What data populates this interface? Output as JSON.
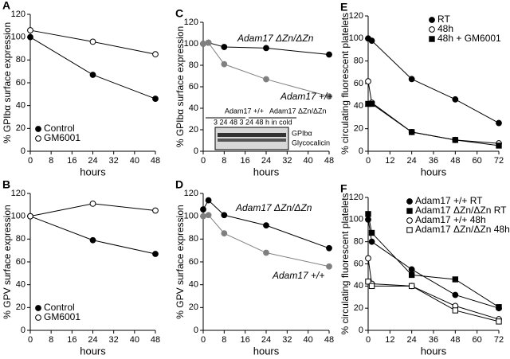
{
  "chart_data": [
    {
      "type": "line",
      "label": "A",
      "ylabel": "% GPIbα surface expression",
      "xlabel": "hours",
      "xlim": [
        0,
        48
      ],
      "xticks": [
        0,
        8,
        16,
        24,
        32,
        40,
        48
      ],
      "ylim": [
        0,
        120
      ],
      "yticks": [
        0,
        20,
        40,
        60,
        80,
        100,
        120
      ],
      "legend": "lower-left",
      "series": [
        {
          "name": "Control",
          "color": "#000000",
          "marker": "circle",
          "filled": true,
          "x": [
            0,
            24,
            48
          ],
          "values": [
            100,
            67,
            46
          ]
        },
        {
          "name": "GM6001",
          "color": "#000000",
          "marker": "circle",
          "filled": false,
          "x": [
            0,
            24,
            48
          ],
          "values": [
            106,
            96,
            85
          ]
        }
      ]
    },
    {
      "type": "line",
      "label": "B",
      "ylabel": "% GPV surface expression",
      "xlabel": "hours",
      "xlim": [
        0,
        48
      ],
      "xticks": [
        0,
        8,
        16,
        24,
        32,
        40,
        48
      ],
      "ylim": [
        0,
        120
      ],
      "yticks": [
        0,
        20,
        40,
        60,
        80,
        100,
        120
      ],
      "legend": "lower-left",
      "series": [
        {
          "name": "Control",
          "color": "#000000",
          "marker": "circle",
          "filled": true,
          "x": [
            0,
            24,
            48
          ],
          "values": [
            100,
            79,
            67
          ]
        },
        {
          "name": "GM6001",
          "color": "#000000",
          "marker": "circle",
          "filled": false,
          "x": [
            0,
            24,
            48
          ],
          "values": [
            100,
            111,
            105
          ]
        }
      ]
    },
    {
      "type": "line",
      "label": "C",
      "ylabel": "% GPIbα surface expression",
      "xlabel": "hours",
      "xlim": [
        0,
        48
      ],
      "xticks": [
        0,
        8,
        16,
        24,
        32,
        40,
        48
      ],
      "ylim": [
        0,
        120
      ],
      "yticks": [
        0,
        20,
        40,
        60,
        80,
        100,
        120
      ],
      "legend": "inline",
      "series": [
        {
          "name": "Adam17 ΔZn/ΔZn",
          "color": "#000000",
          "marker": "circle",
          "filled": true,
          "x": [
            0,
            2,
            8,
            24,
            48
          ],
          "values": [
            100,
            101,
            97,
            96,
            90
          ]
        },
        {
          "name": "Adam17 +/+",
          "color": "#808080",
          "marker": "circle",
          "filled": true,
          "x": [
            0,
            2,
            8,
            24,
            48
          ],
          "values": [
            100,
            101,
            81,
            67,
            51
          ]
        }
      ],
      "annotations": [
        "Adam17 +/+",
        "Adam17 ΔZn/ΔZn",
        "3 24 48 3 24 48 h in cold",
        "GPIbα",
        "Glycocalicin"
      ]
    },
    {
      "type": "line",
      "label": "D",
      "ylabel": "% GPV surface expression",
      "xlabel": "hours",
      "xlim": [
        0,
        48
      ],
      "xticks": [
        0,
        8,
        16,
        24,
        32,
        40,
        48
      ],
      "ylim": [
        0,
        120
      ],
      "yticks": [
        0,
        20,
        40,
        60,
        80,
        100,
        120
      ],
      "legend": "inline",
      "series": [
        {
          "name": "Adam17 ΔZn/ΔZn",
          "color": "#000000",
          "marker": "circle",
          "filled": true,
          "x": [
            0,
            2,
            8,
            24,
            48
          ],
          "values": [
            106,
            114,
            101,
            92,
            72
          ]
        },
        {
          "name": "Adam17 +/+",
          "color": "#808080",
          "marker": "circle",
          "filled": true,
          "x": [
            0,
            2,
            8,
            24,
            48
          ],
          "values": [
            100,
            101,
            85,
            68,
            56
          ]
        }
      ]
    },
    {
      "type": "line",
      "label": "E",
      "ylabel": "% circulating fluorescent platelets",
      "xlabel": "hours",
      "xlim": [
        0,
        72
      ],
      "xticks": [
        0,
        12,
        24,
        36,
        48,
        60,
        72
      ],
      "ylim": [
        0,
        120
      ],
      "yticks": [
        0,
        20,
        40,
        60,
        80,
        100,
        120
      ],
      "legend": "upper-right",
      "series": [
        {
          "name": "RT",
          "color": "#000000",
          "marker": "circle",
          "filled": true,
          "x": [
            0,
            2,
            24,
            48,
            72
          ],
          "values": [
            100,
            98,
            64,
            46,
            25
          ]
        },
        {
          "name": "48h",
          "color": "#000000",
          "marker": "circle",
          "filled": false,
          "x": [
            0,
            2,
            24,
            48,
            72
          ],
          "values": [
            62,
            43,
            17,
            10,
            7
          ]
        },
        {
          "name": "48h + GM6001",
          "color": "#000000",
          "marker": "square",
          "filled": true,
          "x": [
            0,
            2,
            24,
            48,
            72
          ],
          "values": [
            42,
            42,
            17,
            10,
            5
          ]
        }
      ]
    },
    {
      "type": "line",
      "label": "F",
      "ylabel": "% circulating fluorescent platelets",
      "xlabel": "hours",
      "xlim": [
        0,
        72
      ],
      "xticks": [
        0,
        12,
        24,
        36,
        48,
        60,
        72
      ],
      "ylim": [
        0,
        120
      ],
      "yticks": [
        0,
        20,
        40,
        60,
        80,
        100,
        120
      ],
      "legend": "upper-right",
      "series": [
        {
          "name": "Adam17 +/+ RT",
          "color": "#000000",
          "marker": "circle",
          "filled": true,
          "x": [
            0,
            2,
            24,
            48,
            72
          ],
          "values": [
            100,
            80,
            55,
            32,
            20
          ]
        },
        {
          "name": "Adam17 ΔZn/ΔZn RT",
          "color": "#000000",
          "marker": "square",
          "filled": true,
          "x": [
            0,
            2,
            24,
            48,
            72
          ],
          "values": [
            105,
            88,
            50,
            46,
            21
          ]
        },
        {
          "name": "Adam17 +/+ 48h",
          "color": "#000000",
          "marker": "circle",
          "filled": false,
          "x": [
            0,
            2,
            24,
            48,
            72
          ],
          "values": [
            65,
            42,
            40,
            22,
            10
          ]
        },
        {
          "name": "Adam17 ΔZn/ΔZn 48h",
          "color": "#000000",
          "marker": "square",
          "filled": false,
          "x": [
            0,
            2,
            24,
            48,
            72
          ],
          "values": [
            44,
            40,
            40,
            18,
            8
          ]
        }
      ]
    }
  ]
}
